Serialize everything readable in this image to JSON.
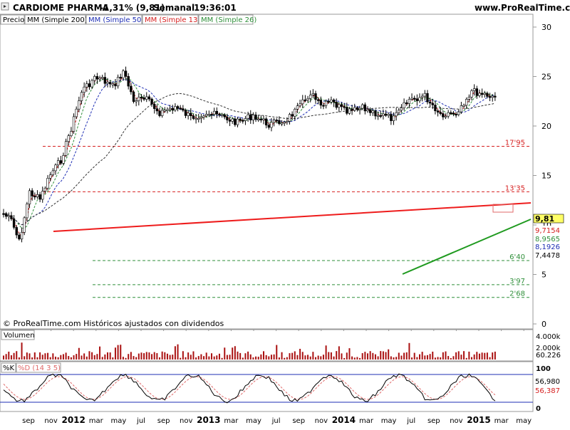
{
  "header": {
    "title": "CARDIOME PHARMA",
    "change": "-1,31% (9,81)",
    "period": "Semanal",
    "time": "19:36:01",
    "site": "www.ProRealTime.com"
  },
  "legend": [
    {
      "label": "Precio",
      "color": "#000000"
    },
    {
      "label": "MM (Simple 200)",
      "color": "#000000"
    },
    {
      "label": "MM (Simple 50)",
      "color": "#1f2fb4"
    },
    {
      "label": "MM (Simple 13)",
      "color": "#d62020"
    },
    {
      "label": "MM (Simple 26)",
      "color": "#2f8f3a"
    }
  ],
  "footer_note": "© ProRealTime.com  Históricos ajustados con dividendos",
  "volume_panel": {
    "label": "Volumen",
    "ticks": [
      "4.000k",
      "2.000k"
    ],
    "last": "60.226"
  },
  "osc_panel": {
    "label_k": "%K",
    "label_d": "%D (14 3 5)",
    "ticks": [
      "100",
      "0"
    ],
    "last_k": "56,980",
    "last_d": "56,387"
  },
  "chart_data": {
    "type": "candlestick",
    "price_axis_ticks": [
      "30",
      "25",
      "20",
      "15",
      "10",
      "5",
      "0"
    ],
    "x_tick_labels": [
      {
        "label": "sep",
        "bold": false
      },
      {
        "label": "nov",
        "bold": false
      },
      {
        "label": "2012",
        "bold": true
      },
      {
        "label": "mar",
        "bold": false
      },
      {
        "label": "may",
        "bold": false
      },
      {
        "label": "jul",
        "bold": false
      },
      {
        "label": "sep",
        "bold": false
      },
      {
        "label": "nov",
        "bold": false
      },
      {
        "label": "2013",
        "bold": true
      },
      {
        "label": "mar",
        "bold": false
      },
      {
        "label": "may",
        "bold": false
      },
      {
        "label": "jul",
        "bold": false
      },
      {
        "label": "sep",
        "bold": false
      },
      {
        "label": "nov",
        "bold": false
      },
      {
        "label": "2014",
        "bold": true
      },
      {
        "label": "mar",
        "bold": false
      },
      {
        "label": "may",
        "bold": false
      },
      {
        "label": "jul",
        "bold": false
      },
      {
        "label": "sep",
        "bold": false
      },
      {
        "label": "nov",
        "bold": false
      },
      {
        "label": "2015",
        "bold": true
      },
      {
        "label": "mar",
        "bold": false
      },
      {
        "label": "may",
        "bold": false
      }
    ],
    "levels": [
      {
        "label": "17'95",
        "value": 17.95,
        "color": "#d62020"
      },
      {
        "label": "13'35",
        "value": 13.35,
        "color": "#d62020"
      },
      {
        "label": "6'40",
        "value": 6.4,
        "color": "#2f8f3a"
      },
      {
        "label": "3'97",
        "value": 3.97,
        "color": "#2f8f3a"
      },
      {
        "label": "2'68",
        "value": 2.68,
        "color": "#2f8f3a"
      }
    ],
    "last_values": [
      {
        "label": "9,81",
        "value": 9.81,
        "bg": "#ffff66",
        "color": "#000000"
      },
      {
        "label": "9,7154",
        "value": 9.7154,
        "bg": "#ffffff",
        "color": "#d62020"
      },
      {
        "label": "8,9565",
        "value": 8.9565,
        "bg": "#ffffff",
        "color": "#2f8f3a"
      },
      {
        "label": "8,1926",
        "value": 8.1926,
        "bg": "#ffffff",
        "color": "#1f2fb4"
      },
      {
        "label": "7,4478",
        "value": 7.4478,
        "bg": "#ffffff",
        "color": "#000000"
      }
    ]
  }
}
